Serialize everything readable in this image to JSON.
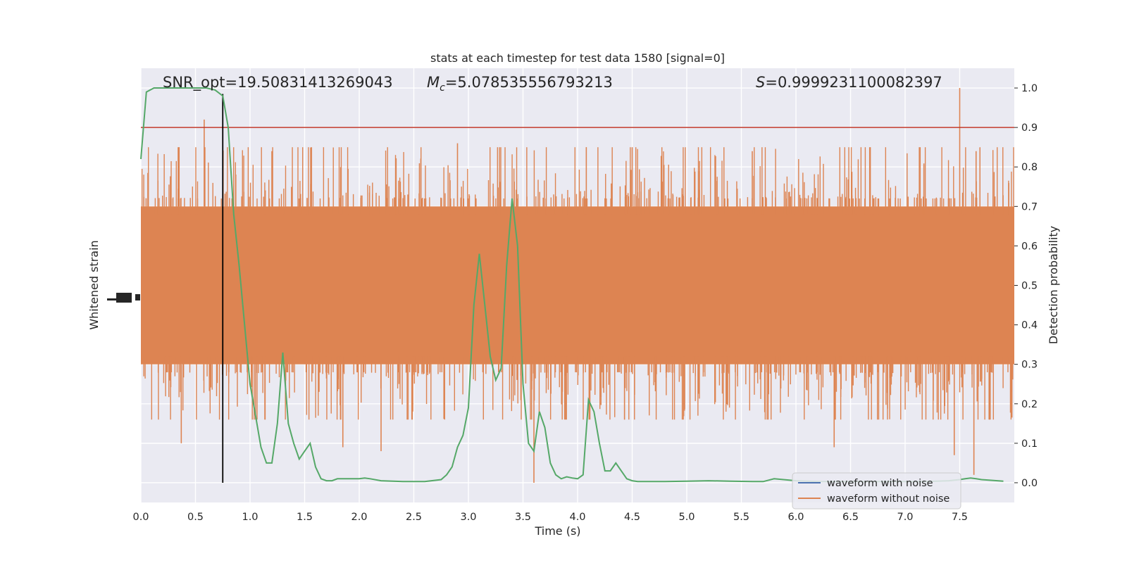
{
  "chart_data": {
    "type": "line",
    "title": "stats at each timestep for test data 1580 [signal=0]",
    "xlabel": "Time (s)",
    "ylabel_left": "Whitened strain",
    "ylabel_right": "Detection probability",
    "xlim": [
      0,
      8
    ],
    "ylim_right": [
      -0.05,
      1.05
    ],
    "x_ticks": [
      0.0,
      0.5,
      1.0,
      1.5,
      2.0,
      2.5,
      3.0,
      3.5,
      4.0,
      4.5,
      5.0,
      5.5,
      6.0,
      6.5,
      7.0,
      7.5
    ],
    "x_tick_labels": [
      "0.0",
      "0.5",
      "1.0",
      "1.5",
      "2.0",
      "2.5",
      "3.0",
      "3.5",
      "4.0",
      "4.5",
      "5.0",
      "5.5",
      "6.0",
      "6.5",
      "7.0",
      "7.5"
    ],
    "y_right_ticks": [
      0.0,
      0.1,
      0.2,
      0.3,
      0.4,
      0.5,
      0.6,
      0.7,
      0.8,
      0.9,
      1.0
    ],
    "y_right_tick_labels": [
      "0.0",
      "0.1",
      "0.2",
      "0.3",
      "0.4",
      "0.5",
      "0.6",
      "0.7",
      "0.8",
      "0.9",
      "1.0"
    ],
    "grid": true,
    "annotations": {
      "snr": "SNR_opt=19.50831413269043",
      "mc_symbol": "M",
      "mc_sub": "c",
      "mc_value": "=5.078535556793213",
      "s_symbol": "S",
      "s_value": "=0.9999231100082397"
    },
    "threshold": {
      "y": 0.9,
      "color": "#c0392b"
    },
    "marker_time": 0.75,
    "legend": {
      "position": "lower-right",
      "entries": [
        {
          "label": "waveform with noise",
          "color": "#4c72b0"
        },
        {
          "label": "waveform without noise",
          "color": "#dd8452"
        }
      ]
    },
    "series": [
      {
        "name": "waveform with noise",
        "color": "#4c72b0",
        "description_values": "whitened strain time series; hidden behind orange trace"
      },
      {
        "name": "waveform without noise",
        "color": "#dd8452",
        "band_center": 0.5,
        "band_halfwidth": 0.2,
        "spikes": [
          {
            "t": 0.58,
            "top": 0.92
          },
          {
            "t": 0.35,
            "top": 0.85
          },
          {
            "t": 1.2,
            "top": 0.84
          },
          {
            "t": 2.9,
            "top": 0.86
          },
          {
            "t": 4.5,
            "top": 0.85
          },
          {
            "t": 5.6,
            "top": 0.84
          },
          {
            "t": 7.5,
            "top": 1.0
          },
          {
            "t": 7.65,
            "top": 0.84
          },
          {
            "t": 0.37,
            "bottom": 0.1
          },
          {
            "t": 1.85,
            "bottom": 0.09
          },
          {
            "t": 2.2,
            "bottom": 0.08
          },
          {
            "t": 3.6,
            "bottom": 0.0
          },
          {
            "t": 6.35,
            "bottom": 0.09
          },
          {
            "t": 7.45,
            "bottom": 0.07
          },
          {
            "t": 7.63,
            "bottom": 0.02
          }
        ]
      },
      {
        "name": "",
        "color": "#55a868",
        "x": [
          0.0,
          0.05,
          0.12,
          0.2,
          0.3,
          0.4,
          0.5,
          0.6,
          0.68,
          0.75,
          0.8,
          0.85,
          0.9,
          1.0,
          1.05,
          1.1,
          1.15,
          1.2,
          1.25,
          1.3,
          1.35,
          1.4,
          1.45,
          1.5,
          1.55,
          1.6,
          1.65,
          1.7,
          1.75,
          1.8,
          1.9,
          2.0,
          2.05,
          2.1,
          2.2,
          2.4,
          2.6,
          2.75,
          2.8,
          2.85,
          2.9,
          2.95,
          3.0,
          3.05,
          3.1,
          3.15,
          3.2,
          3.25,
          3.3,
          3.35,
          3.4,
          3.45,
          3.5,
          3.55,
          3.6,
          3.65,
          3.7,
          3.75,
          3.8,
          3.85,
          3.9,
          3.95,
          4.0,
          4.05,
          4.1,
          4.15,
          4.2,
          4.25,
          4.3,
          4.35,
          4.4,
          4.45,
          4.5,
          4.55,
          4.6,
          4.8,
          5.0,
          5.2,
          5.4,
          5.6,
          5.7,
          5.8,
          6.0,
          6.2,
          6.5,
          6.8,
          7.0,
          7.2,
          7.4,
          7.5,
          7.55,
          7.6,
          7.65,
          7.7,
          7.8,
          7.9
        ],
        "y": [
          0.82,
          0.99,
          1.0,
          1.0,
          1.0,
          1.0,
          1.0,
          1.0,
          0.995,
          0.98,
          0.9,
          0.68,
          0.55,
          0.25,
          0.17,
          0.09,
          0.05,
          0.05,
          0.15,
          0.33,
          0.15,
          0.1,
          0.06,
          0.08,
          0.1,
          0.04,
          0.01,
          0.005,
          0.005,
          0.01,
          0.01,
          0.01,
          0.012,
          0.01,
          0.005,
          0.003,
          0.003,
          0.008,
          0.02,
          0.04,
          0.09,
          0.12,
          0.19,
          0.45,
          0.58,
          0.45,
          0.32,
          0.26,
          0.29,
          0.55,
          0.72,
          0.6,
          0.25,
          0.1,
          0.08,
          0.18,
          0.14,
          0.05,
          0.02,
          0.01,
          0.015,
          0.012,
          0.01,
          0.02,
          0.21,
          0.18,
          0.1,
          0.03,
          0.03,
          0.05,
          0.03,
          0.01,
          0.005,
          0.003,
          0.003,
          0.003,
          0.004,
          0.005,
          0.004,
          0.003,
          0.003,
          0.01,
          0.005,
          0.003,
          0.003,
          0.003,
          0.003,
          0.003,
          0.005,
          0.008,
          0.01,
          0.012,
          0.01,
          0.008,
          0.006,
          0.004
        ]
      }
    ]
  }
}
